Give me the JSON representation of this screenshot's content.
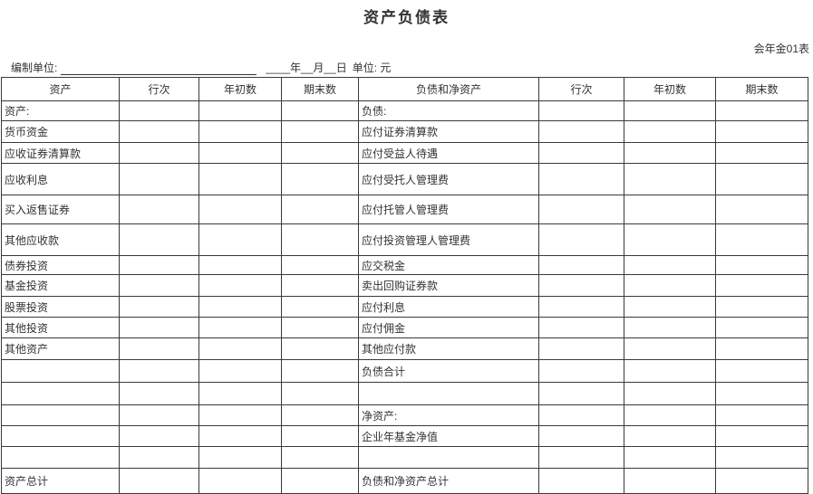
{
  "title": "资产负债表",
  "form_code": "会年金01表",
  "prep_line": {
    "unit_label": "编制单位:",
    "date_part": "____年__月__日",
    "currency_label": "单位: 元"
  },
  "table": {
    "headers": {
      "asset": "资产",
      "asset_line_no": "行次",
      "asset_opening": "年初数",
      "asset_closing": "期末数",
      "liability": "负债和净资产",
      "liability_line_no": "行次",
      "liability_opening": "年初数",
      "liability_closing": "期末数"
    },
    "rows": [
      {
        "asset": "资产:",
        "asset_line_no": "",
        "asset_opening": "",
        "asset_closing": "",
        "liability": "负债:",
        "liability_line_no": "",
        "liability_opening": "",
        "liability_closing": ""
      },
      {
        "asset": "货币资金",
        "asset_line_no": "",
        "asset_opening": "",
        "asset_closing": "",
        "liability": "应付证券清算款",
        "liability_line_no": "",
        "liability_opening": "",
        "liability_closing": ""
      },
      {
        "asset": "应收证券清算款",
        "asset_line_no": "",
        "asset_opening": "",
        "asset_closing": "",
        "liability": "应付受益人待遇",
        "liability_line_no": "",
        "liability_opening": "",
        "liability_closing": ""
      },
      {
        "asset": "应收利息",
        "asset_line_no": "",
        "asset_opening": "",
        "asset_closing": "",
        "liability": "应付受托人管理费",
        "liability_line_no": "",
        "liability_opening": "",
        "liability_closing": ""
      },
      {
        "asset": "买入返售证券",
        "asset_line_no": "",
        "asset_opening": "",
        "asset_closing": "",
        "liability": "应付托管人管理费",
        "liability_line_no": "",
        "liability_opening": "",
        "liability_closing": ""
      },
      {
        "asset": "其他应收款",
        "asset_line_no": "",
        "asset_opening": "",
        "asset_closing": "",
        "liability": "应付投资管理人管理费",
        "liability_line_no": "",
        "liability_opening": "",
        "liability_closing": ""
      },
      {
        "asset": "债券投资",
        "asset_line_no": "",
        "asset_opening": "",
        "asset_closing": "",
        "liability": "应交税金",
        "liability_line_no": "",
        "liability_opening": "",
        "liability_closing": ""
      },
      {
        "asset": "基金投资",
        "asset_line_no": "",
        "asset_opening": "",
        "asset_closing": "",
        "liability": "卖出回购证券款",
        "liability_line_no": "",
        "liability_opening": "",
        "liability_closing": ""
      },
      {
        "asset": "股票投资",
        "asset_line_no": "",
        "asset_opening": "",
        "asset_closing": "",
        "liability": "应付利息",
        "liability_line_no": "",
        "liability_opening": "",
        "liability_closing": ""
      },
      {
        "asset": "其他投资",
        "asset_line_no": "",
        "asset_opening": "",
        "asset_closing": "",
        "liability": "应付佣金",
        "liability_line_no": "",
        "liability_opening": "",
        "liability_closing": ""
      },
      {
        "asset": "其他资产",
        "asset_line_no": "",
        "asset_opening": "",
        "asset_closing": "",
        "liability": "其他应付款",
        "liability_line_no": "",
        "liability_opening": "",
        "liability_closing": ""
      },
      {
        "asset": "",
        "asset_line_no": "",
        "asset_opening": "",
        "asset_closing": "",
        "liability": "负债合计",
        "liability_line_no": "",
        "liability_opening": "",
        "liability_closing": ""
      },
      {
        "asset": "",
        "asset_line_no": "",
        "asset_opening": "",
        "asset_closing": "",
        "liability": "",
        "liability_line_no": "",
        "liability_opening": "",
        "liability_closing": ""
      },
      {
        "asset": "",
        "asset_line_no": "",
        "asset_opening": "",
        "asset_closing": "",
        "liability": "净资产:",
        "liability_line_no": "",
        "liability_opening": "",
        "liability_closing": ""
      },
      {
        "asset": "",
        "asset_line_no": "",
        "asset_opening": "",
        "asset_closing": "",
        "liability": "企业年基金净值",
        "liability_line_no": "",
        "liability_opening": "",
        "liability_closing": ""
      },
      {
        "asset": "",
        "asset_line_no": "",
        "asset_opening": "",
        "asset_closing": "",
        "liability": "",
        "liability_line_no": "",
        "liability_opening": "",
        "liability_closing": ""
      },
      {
        "asset": "资产总计",
        "asset_line_no": "",
        "asset_opening": "",
        "asset_closing": "",
        "liability": "负债和净资产总计",
        "liability_line_no": "",
        "liability_opening": "",
        "liability_closing": ""
      }
    ]
  }
}
